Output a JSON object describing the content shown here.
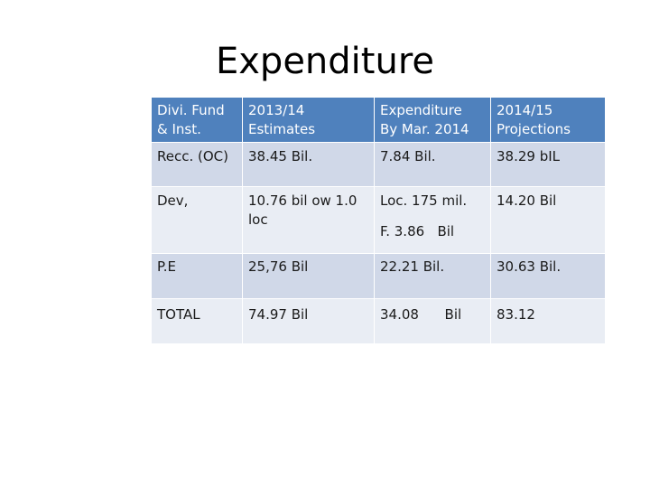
{
  "title": "Expenditure",
  "table": {
    "headers": [
      [
        "Divi. Fund",
        "& Inst."
      ],
      [
        "2013/14",
        "Estimates"
      ],
      [
        "Expenditure",
        "By Mar. 2014"
      ],
      [
        "2014/15",
        "Projections"
      ]
    ],
    "rows": [
      {
        "label": "Recc. (OC)",
        "estimates": "38.45 Bil.",
        "expenditure": "7.84 Bil.",
        "projections": "38.29 bIL"
      },
      {
        "label": "Dev,",
        "estimates": "10.76 bil ow 1.0 loc",
        "expenditure": "Loc. 175 mil.",
        "expenditure_sub": "F. 3.86   Bil",
        "projections": "14.20 Bil"
      },
      {
        "label": "P.E",
        "estimates": "25,76 Bil",
        "expenditure": "22.21 Bil.",
        "projections": "30.63 Bil."
      },
      {
        "label": "TOTAL",
        "estimates": "74.97 Bil",
        "expenditure": "34.08      Bil",
        "projections": "83.12"
      }
    ]
  },
  "colors": {
    "header": "#4f81bd",
    "row_dark": "#d0d8e8",
    "row_light": "#e9edf4"
  }
}
